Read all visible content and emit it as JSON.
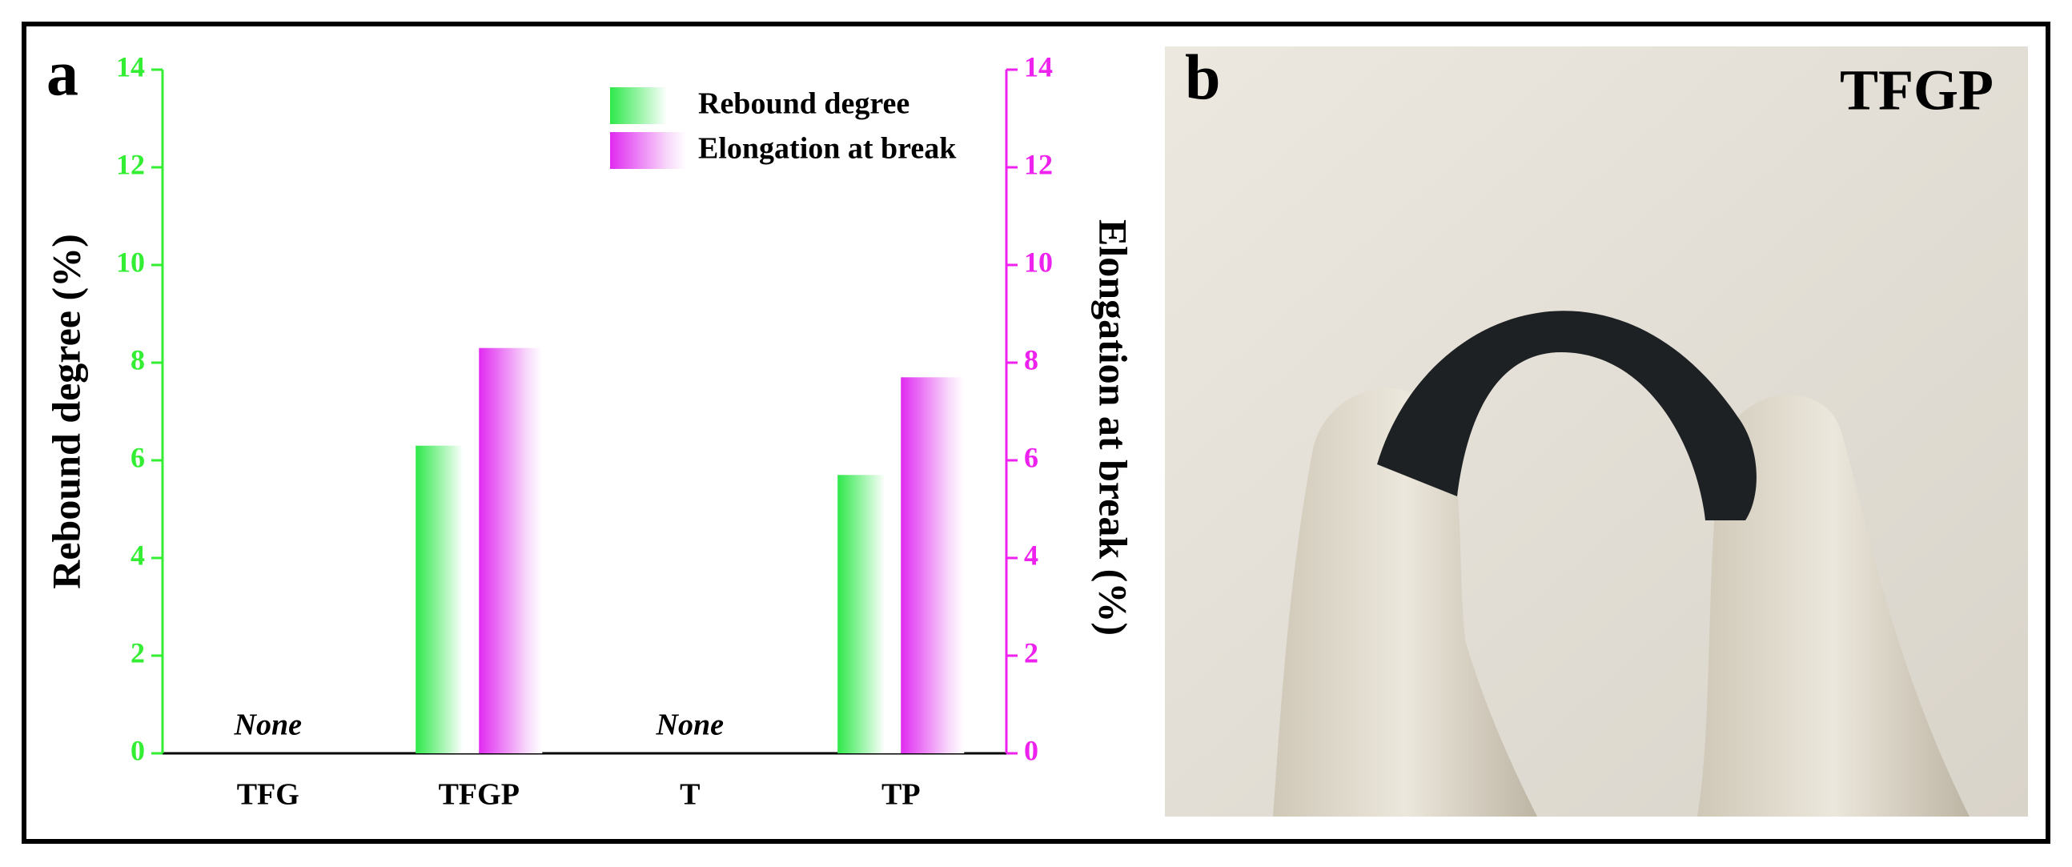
{
  "chart_data": {
    "type": "bar",
    "panel_label": "a",
    "y_label": "Rebound degree (%)",
    "y2_label": "Elongation at break (%)",
    "categories": [
      "TFG",
      "TFGP",
      "T",
      "TP"
    ],
    "series": [
      {
        "name": "Rebound degree",
        "color": "#2ee84a",
        "values": [
          null,
          6.3,
          null,
          5.7
        ],
        "value_labels": [
          "None",
          null,
          "None",
          null
        ]
      },
      {
        "name": "Elongation at break",
        "color": "#e02af0",
        "axis": "y2",
        "values": [
          null,
          8.3,
          null,
          7.7
        ]
      }
    ],
    "ylim": [
      0,
      14
    ],
    "yticks": [
      0,
      2,
      4,
      6,
      8,
      10,
      12,
      14
    ],
    "y2lim": [
      0,
      14
    ],
    "y2ticks": [
      0,
      2,
      4,
      6,
      8,
      10,
      12,
      14
    ],
    "y_color": "#33ee33",
    "y2_color": "#ee22ee",
    "legend": "upper right"
  },
  "photo": {
    "panel_label": "b",
    "label": "TFGP"
  }
}
